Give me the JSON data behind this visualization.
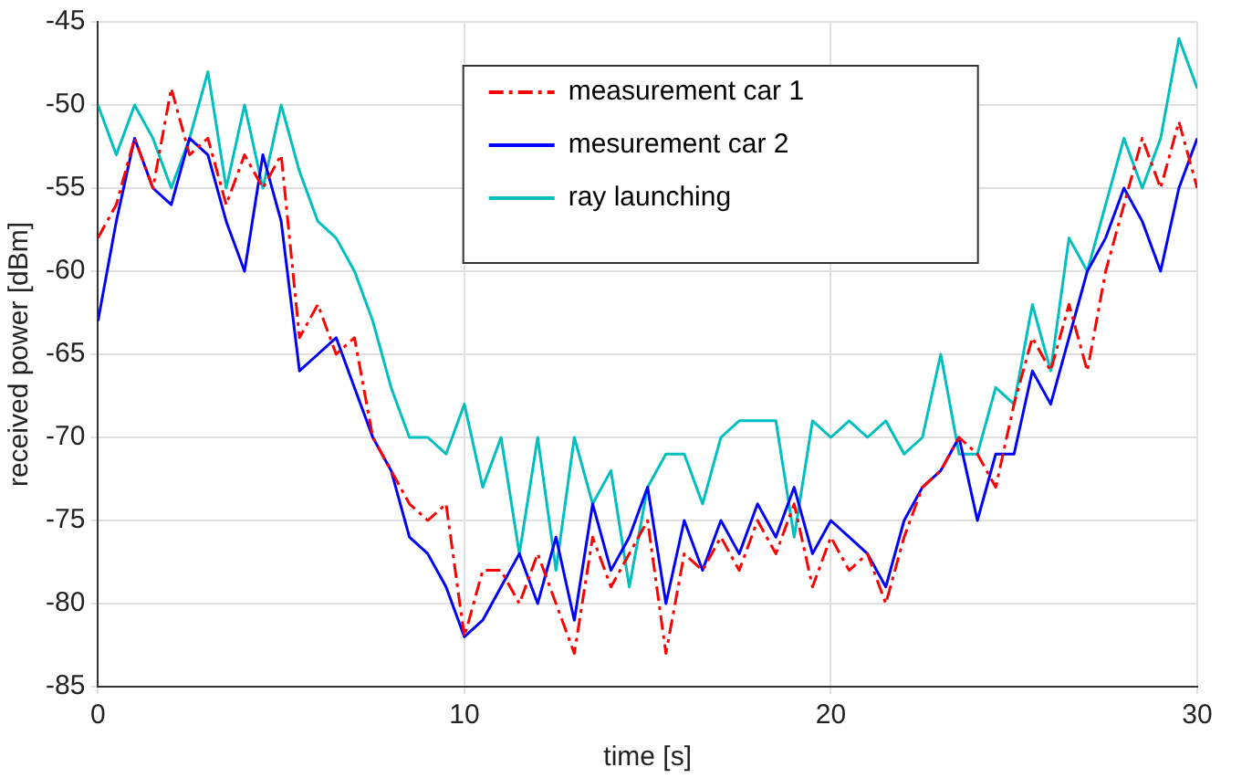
{
  "chart_data": {
    "type": "line",
    "xlabel": "time [s]",
    "ylabel": "received power [dBm]",
    "x": [
      0,
      0.5,
      1,
      1.5,
      2,
      2.5,
      3,
      3.5,
      4,
      4.5,
      5,
      5.5,
      6,
      6.5,
      7,
      7.5,
      8,
      8.5,
      9,
      9.5,
      10,
      10.5,
      11,
      11.5,
      12,
      12.5,
      13,
      13.5,
      14,
      14.5,
      15,
      15.5,
      16,
      16.5,
      17,
      17.5,
      18,
      18.5,
      19,
      19.5,
      20,
      20.5,
      21,
      21.5,
      22,
      22.5,
      23,
      23.5,
      24,
      24.5,
      25,
      25.5,
      26,
      26.5,
      27,
      27.5,
      28,
      28.5,
      29,
      29.5,
      30
    ],
    "series": [
      {
        "name": "measurement car 1",
        "color": "#ff0000",
        "line_style": "dashed",
        "values": [
          -58,
          -56,
          -52,
          -55,
          -49,
          -53,
          -52,
          -56,
          -53,
          -55,
          -53,
          -64,
          -62,
          -65,
          -64,
          -70,
          -72,
          -74,
          -75,
          -74,
          -82,
          -78,
          -78,
          -80,
          -77,
          -80,
          -83,
          -76,
          -79,
          -77,
          -75,
          -83,
          -77,
          -78,
          -76,
          -78,
          -75,
          -77,
          -74,
          -79,
          -76,
          -78,
          -77,
          -80,
          -76,
          -73,
          -72,
          -70,
          -71,
          -73,
          -68,
          -64,
          -66,
          -62,
          -66,
          -60,
          -56,
          -52,
          -55,
          -51,
          -55
        ]
      },
      {
        "name": "mesurement car 2",
        "color": "#0000ff",
        "line_style": "solid",
        "values": [
          -63,
          -57,
          -52,
          -55,
          -56,
          -52,
          -53,
          -57,
          -60,
          -53,
          -57,
          -66,
          -65,
          -64,
          -67,
          -70,
          -72,
          -76,
          -77,
          -79,
          -82,
          -81,
          -79,
          -77,
          -80,
          -76,
          -81,
          -74,
          -78,
          -76,
          -73,
          -80,
          -75,
          -78,
          -75,
          -77,
          -74,
          -76,
          -73,
          -77,
          -75,
          -76,
          -77,
          -79,
          -75,
          -73,
          -72,
          -70,
          -75,
          -71,
          -71,
          -66,
          -68,
          -64,
          -60,
          -58,
          -55,
          -57,
          -60,
          -55,
          -52
        ]
      },
      {
        "name": "ray launching",
        "color": "#00bfbf",
        "line_style": "solid",
        "values": [
          -50,
          -53,
          -50,
          -52,
          -55,
          -52,
          -48,
          -55,
          -50,
          -55,
          -50,
          -54,
          -57,
          -58,
          -60,
          -63,
          -67,
          -70,
          -70,
          -71,
          -68,
          -73,
          -70,
          -77,
          -70,
          -78,
          -70,
          -74,
          -72,
          -79,
          -73,
          -71,
          -71,
          -74,
          -70,
          -69,
          -69,
          -69,
          -76,
          -69,
          -70,
          -69,
          -70,
          -69,
          -71,
          -70,
          -65,
          -71,
          -71,
          -67,
          -68,
          -62,
          -66,
          -58,
          -60,
          -56,
          -52,
          -55,
          -52,
          -46,
          -49
        ]
      }
    ],
    "xlim": [
      0,
      30
    ],
    "xticks": [
      0,
      10,
      20,
      30
    ],
    "ylim": [
      -85,
      -45
    ],
    "yticks": [
      -85,
      -80,
      -75,
      -70,
      -65,
      -60,
      -55,
      -50,
      -45
    ],
    "grid": true,
    "legend": "top",
    "marker": "none"
  }
}
